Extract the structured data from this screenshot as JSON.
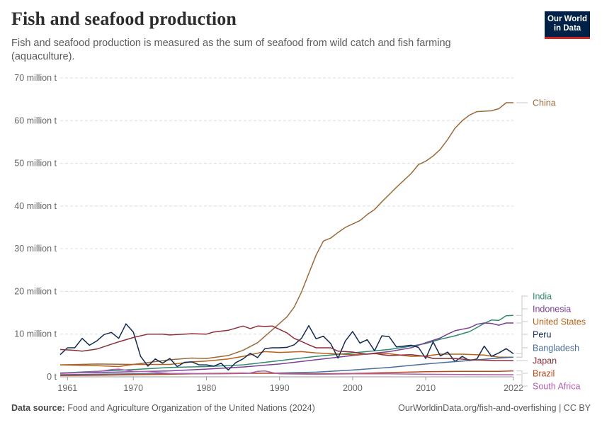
{
  "header": {
    "title": "Fish and seafood production",
    "subtitle": "Fish and seafood production is measured as the sum of seafood from wild catch and fish farming (aquaculture).",
    "logo_line1": "Our World",
    "logo_line2": "in Data"
  },
  "footer": {
    "source_label": "Data source:",
    "source_text": "Food and Agriculture Organization of the United Nations (2024)",
    "url": "OurWorldinData.org/fish-and-overfishing | CC BY"
  },
  "chart_data": {
    "type": "line",
    "title": "Fish and seafood production",
    "xlabel": "",
    "ylabel": "",
    "xlim": [
      1960,
      2022
    ],
    "ylim": [
      0,
      70
    ],
    "unit": "million t",
    "y_ticks": [
      0,
      10,
      20,
      30,
      40,
      50,
      60,
      70
    ],
    "y_tick_labels": [
      "0 t",
      "10 million t",
      "20 million t",
      "30 million t",
      "40 million t",
      "50 million t",
      "60 million t",
      "70 million t"
    ],
    "x_ticks": [
      1961,
      1970,
      1980,
      1990,
      2000,
      2010,
      2022
    ],
    "x_tick_labels": [
      "1961",
      "1970",
      "1980",
      "1990",
      "2000",
      "2010",
      "2022"
    ],
    "grid": "horizontal dashed",
    "legend": "right",
    "series": [
      {
        "name": "China",
        "color": "#9a6a3c",
        "points": [
          [
            1960,
            2.8
          ],
          [
            1965,
            3.0
          ],
          [
            1970,
            2.9
          ],
          [
            1975,
            4.0
          ],
          [
            1978,
            4.4
          ],
          [
            1980,
            4.3
          ],
          [
            1983,
            5.0
          ],
          [
            1985,
            6.2
          ],
          [
            1987,
            8.0
          ],
          [
            1989,
            11.0
          ],
          [
            1990,
            12.5
          ],
          [
            1991,
            14.0
          ],
          [
            1992,
            16.3
          ],
          [
            1993,
            19.8
          ],
          [
            1994,
            24.2
          ],
          [
            1995,
            28.5
          ],
          [
            1996,
            31.8
          ],
          [
            1997,
            32.5
          ],
          [
            1998,
            33.8
          ],
          [
            1999,
            35.0
          ],
          [
            2000,
            35.8
          ],
          [
            2001,
            36.6
          ],
          [
            2002,
            38.0
          ],
          [
            2003,
            39.2
          ],
          [
            2004,
            41.0
          ],
          [
            2005,
            42.7
          ],
          [
            2006,
            44.4
          ],
          [
            2007,
            46.0
          ],
          [
            2008,
            47.6
          ],
          [
            2009,
            49.7
          ],
          [
            2010,
            50.5
          ],
          [
            2011,
            51.7
          ],
          [
            2012,
            53.3
          ],
          [
            2013,
            55.6
          ],
          [
            2014,
            58.2
          ],
          [
            2015,
            60.0
          ],
          [
            2016,
            61.3
          ],
          [
            2017,
            62.1
          ],
          [
            2018,
            62.2
          ],
          [
            2019,
            62.3
          ],
          [
            2020,
            62.8
          ],
          [
            2021,
            64.2
          ],
          [
            2022,
            64.2
          ]
        ]
      },
      {
        "name": "India",
        "color": "#2e8b6e",
        "points": [
          [
            1960,
            0.9
          ],
          [
            1965,
            1.3
          ],
          [
            1970,
            1.7
          ],
          [
            1975,
            2.2
          ],
          [
            1980,
            2.4
          ],
          [
            1985,
            2.8
          ],
          [
            1990,
            3.8
          ],
          [
            1995,
            4.8
          ],
          [
            2000,
            5.6
          ],
          [
            2005,
            6.4
          ],
          [
            2008,
            7.2
          ],
          [
            2010,
            7.8
          ],
          [
            2012,
            8.8
          ],
          [
            2014,
            9.6
          ],
          [
            2016,
            10.6
          ],
          [
            2018,
            12.5
          ],
          [
            2019,
            13.3
          ],
          [
            2020,
            13.2
          ],
          [
            2021,
            14.3
          ],
          [
            2022,
            14.4
          ]
        ]
      },
      {
        "name": "Indonesia",
        "color": "#7b3f98",
        "points": [
          [
            1960,
            0.9
          ],
          [
            1965,
            1.0
          ],
          [
            1970,
            1.2
          ],
          [
            1975,
            1.4
          ],
          [
            1980,
            1.8
          ],
          [
            1985,
            2.3
          ],
          [
            1990,
            3.0
          ],
          [
            1995,
            4.0
          ],
          [
            2000,
            5.0
          ],
          [
            2005,
            5.9
          ],
          [
            2008,
            6.8
          ],
          [
            2010,
            8.0
          ],
          [
            2012,
            9.1
          ],
          [
            2013,
            10.0
          ],
          [
            2014,
            10.8
          ],
          [
            2016,
            11.5
          ],
          [
            2017,
            12.3
          ],
          [
            2018,
            12.6
          ],
          [
            2019,
            12.5
          ],
          [
            2020,
            12.1
          ],
          [
            2021,
            12.6
          ],
          [
            2022,
            12.6
          ]
        ]
      },
      {
        "name": "United States",
        "color": "#b5621a",
        "points": [
          [
            1960,
            2.8
          ],
          [
            1965,
            2.6
          ],
          [
            1968,
            2.4
          ],
          [
            1970,
            2.9
          ],
          [
            1975,
            2.9
          ],
          [
            1978,
            3.5
          ],
          [
            1980,
            3.7
          ],
          [
            1983,
            4.2
          ],
          [
            1985,
            4.8
          ],
          [
            1988,
            5.9
          ],
          [
            1990,
            5.7
          ],
          [
            1993,
            5.9
          ],
          [
            1995,
            5.6
          ],
          [
            2000,
            5.2
          ],
          [
            2003,
            5.4
          ],
          [
            2005,
            5.4
          ],
          [
            2008,
            4.8
          ],
          [
            2010,
            4.9
          ],
          [
            2012,
            5.3
          ],
          [
            2015,
            5.3
          ],
          [
            2018,
            5.1
          ],
          [
            2020,
            4.6
          ],
          [
            2022,
            4.6
          ]
        ]
      },
      {
        "name": "Peru",
        "color": "#132b54",
        "points": [
          [
            1960,
            5.2
          ],
          [
            1961,
            6.8
          ],
          [
            1962,
            6.8
          ],
          [
            1963,
            9.0
          ],
          [
            1964,
            7.4
          ],
          [
            1965,
            8.4
          ],
          [
            1966,
            9.9
          ],
          [
            1967,
            10.4
          ],
          [
            1968,
            9.0
          ],
          [
            1969,
            12.4
          ],
          [
            1970,
            10.5
          ],
          [
            1971,
            4.8
          ],
          [
            1972,
            2.5
          ],
          [
            1973,
            4.2
          ],
          [
            1974,
            3.2
          ],
          [
            1975,
            4.3
          ],
          [
            1976,
            2.4
          ],
          [
            1977,
            3.4
          ],
          [
            1978,
            3.5
          ],
          [
            1979,
            2.8
          ],
          [
            1980,
            2.8
          ],
          [
            1981,
            2.5
          ],
          [
            1982,
            3.2
          ],
          [
            1983,
            1.6
          ],
          [
            1984,
            3.3
          ],
          [
            1985,
            4.2
          ],
          [
            1986,
            5.5
          ],
          [
            1987,
            4.5
          ],
          [
            1988,
            6.6
          ],
          [
            1989,
            6.8
          ],
          [
            1990,
            6.8
          ],
          [
            1991,
            6.9
          ],
          [
            1992,
            7.5
          ],
          [
            1993,
            9.0
          ],
          [
            1994,
            12.0
          ],
          [
            1995,
            8.9
          ],
          [
            1996,
            9.5
          ],
          [
            1997,
            7.8
          ],
          [
            1998,
            4.4
          ],
          [
            1999,
            8.4
          ],
          [
            2000,
            10.6
          ],
          [
            2001,
            7.9
          ],
          [
            2002,
            8.7
          ],
          [
            2003,
            6.1
          ],
          [
            2004,
            9.6
          ],
          [
            2005,
            9.4
          ],
          [
            2006,
            7.0
          ],
          [
            2007,
            7.2
          ],
          [
            2008,
            7.4
          ],
          [
            2009,
            6.9
          ],
          [
            2010,
            4.3
          ],
          [
            2011,
            8.2
          ],
          [
            2012,
            4.9
          ],
          [
            2013,
            5.8
          ],
          [
            2014,
            3.6
          ],
          [
            2015,
            4.8
          ],
          [
            2016,
            3.8
          ],
          [
            2017,
            4.2
          ],
          [
            2018,
            7.2
          ],
          [
            2019,
            4.8
          ],
          [
            2020,
            5.6
          ],
          [
            2021,
            6.6
          ],
          [
            2022,
            5.4
          ]
        ]
      },
      {
        "name": "Bangladesh",
        "color": "#4a6d9c",
        "points": [
          [
            1960,
            0.5
          ],
          [
            1970,
            0.7
          ],
          [
            1980,
            0.7
          ],
          [
            1990,
            0.9
          ],
          [
            1995,
            1.1
          ],
          [
            2000,
            1.6
          ],
          [
            2005,
            2.2
          ],
          [
            2010,
            3.0
          ],
          [
            2015,
            3.7
          ],
          [
            2020,
            4.4
          ],
          [
            2022,
            4.6
          ]
        ]
      },
      {
        "name": "Japan",
        "color": "#8c2f39",
        "points": [
          [
            1960,
            6.4
          ],
          [
            1962,
            6.2
          ],
          [
            1963,
            6.0
          ],
          [
            1965,
            6.5
          ],
          [
            1968,
            8.2
          ],
          [
            1970,
            9.2
          ],
          [
            1972,
            10.0
          ],
          [
            1974,
            10.0
          ],
          [
            1975,
            9.8
          ],
          [
            1978,
            10.1
          ],
          [
            1980,
            10.0
          ],
          [
            1981,
            10.5
          ],
          [
            1983,
            10.9
          ],
          [
            1984,
            11.4
          ],
          [
            1985,
            11.9
          ],
          [
            1986,
            11.3
          ],
          [
            1987,
            11.9
          ],
          [
            1988,
            11.8
          ],
          [
            1989,
            11.9
          ],
          [
            1990,
            11.1
          ],
          [
            1991,
            10.3
          ],
          [
            1992,
            9.0
          ],
          [
            1993,
            8.3
          ],
          [
            1994,
            7.5
          ],
          [
            1995,
            6.8
          ],
          [
            1997,
            6.8
          ],
          [
            1998,
            6.0
          ],
          [
            1999,
            5.9
          ],
          [
            2000,
            5.8
          ],
          [
            2001,
            5.5
          ],
          [
            2002,
            5.3
          ],
          [
            2003,
            5.5
          ],
          [
            2004,
            5.2
          ],
          [
            2005,
            5.0
          ],
          [
            2008,
            5.2
          ],
          [
            2010,
            4.8
          ],
          [
            2011,
            4.3
          ],
          [
            2012,
            4.3
          ],
          [
            2014,
            4.3
          ],
          [
            2016,
            4.0
          ],
          [
            2018,
            3.9
          ],
          [
            2020,
            3.8
          ],
          [
            2022,
            3.8
          ]
        ]
      },
      {
        "name": "Brazil",
        "color": "#b84a1e",
        "points": [
          [
            1960,
            0.3
          ],
          [
            1965,
            0.35
          ],
          [
            1970,
            0.5
          ],
          [
            1975,
            0.6
          ],
          [
            1980,
            0.8
          ],
          [
            1985,
            0.9
          ],
          [
            1990,
            0.8
          ],
          [
            1995,
            0.7
          ],
          [
            2000,
            0.8
          ],
          [
            2005,
            1.0
          ],
          [
            2010,
            1.2
          ],
          [
            2015,
            1.3
          ],
          [
            2020,
            1.3
          ],
          [
            2022,
            1.4
          ]
        ]
      },
      {
        "name": "South Africa",
        "color": "#b35cb0",
        "points": [
          [
            1960,
            0.8
          ],
          [
            1963,
            1.0
          ],
          [
            1965,
            1.2
          ],
          [
            1967,
            1.7
          ],
          [
            1968,
            1.8
          ],
          [
            1970,
            1.3
          ],
          [
            1972,
            1.2
          ],
          [
            1975,
            0.8
          ],
          [
            1978,
            0.8
          ],
          [
            1980,
            0.7
          ],
          [
            1985,
            0.8
          ],
          [
            1986,
            0.9
          ],
          [
            1987,
            1.3
          ],
          [
            1988,
            1.4
          ],
          [
            1989,
            1.0
          ],
          [
            1990,
            0.7
          ],
          [
            1995,
            0.6
          ],
          [
            2000,
            0.7
          ],
          [
            2005,
            0.7
          ],
          [
            2010,
            0.6
          ],
          [
            2015,
            0.55
          ],
          [
            2020,
            0.5
          ],
          [
            2022,
            0.5
          ]
        ]
      }
    ]
  }
}
